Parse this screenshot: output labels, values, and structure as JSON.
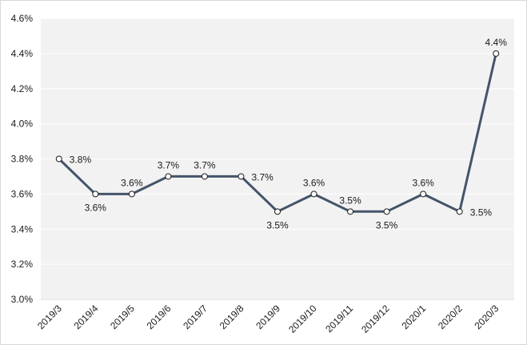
{
  "chart_data": {
    "type": "line",
    "title": "",
    "xlabel": "",
    "ylabel": "",
    "categories": [
      "2019/3",
      "2019/4",
      "2019/5",
      "2019/6",
      "2019/7",
      "2019/8",
      "2019/9",
      "2019/10",
      "2019/11",
      "2019/12",
      "2020/1",
      "2020/2",
      "2020/3"
    ],
    "series": [
      {
        "values": [
          3.8,
          3.6,
          3.6,
          3.7,
          3.7,
          3.7,
          3.5,
          3.6,
          3.5,
          3.5,
          3.6,
          3.5,
          4.4
        ],
        "data_labels": [
          "3.8%",
          "3.6%",
          "3.6%",
          "3.7%",
          "3.7%",
          "3.7%",
          "3.5%",
          "3.6%",
          "3.5%",
          "3.5%",
          "3.6%",
          "3.5%",
          "4.4%"
        ],
        "color": "#44546a"
      }
    ],
    "y_tick_labels": [
      "3.0%",
      "3.2%",
      "3.4%",
      "3.6%",
      "3.8%",
      "4.0%",
      "4.2%",
      "4.4%",
      "4.6%"
    ],
    "ylim": [
      3.0,
      4.6
    ],
    "y_step": 0.2,
    "grid": true,
    "legend": "none",
    "plot_background": "#f2f2f2",
    "grid_color": "#ffffff"
  }
}
